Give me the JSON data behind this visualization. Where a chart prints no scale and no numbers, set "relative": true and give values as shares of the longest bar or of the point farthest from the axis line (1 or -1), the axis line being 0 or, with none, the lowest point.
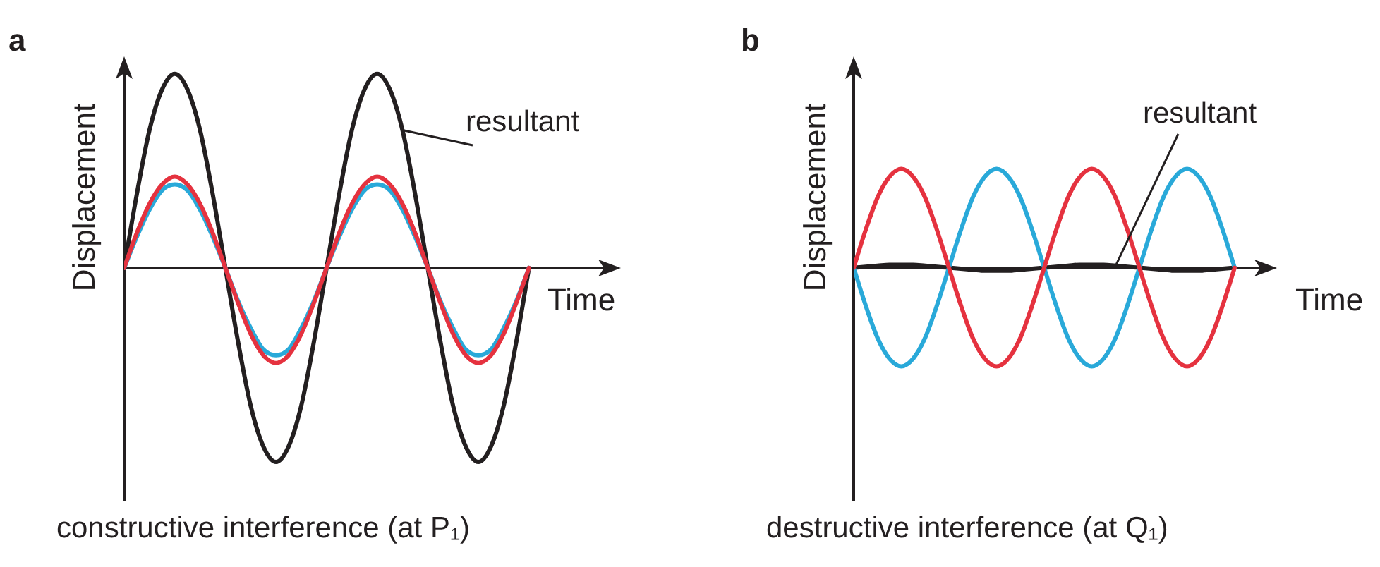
{
  "chart_data": [
    {
      "type": "line",
      "title": "a",
      "xlabel": "Time",
      "ylabel": "Displacement",
      "relative": true,
      "marker": "none",
      "annotations": [
        "constructive interference (at P₁)"
      ],
      "categories": [
        null,
        null,
        null,
        null,
        null,
        null,
        null,
        null,
        null,
        null,
        null,
        null,
        null,
        null,
        null,
        null,
        null,
        null,
        null,
        null,
        null,
        null,
        null,
        null,
        null,
        null,
        null,
        null,
        null,
        null,
        null,
        null,
        null
      ],
      "series": [
        {
          "color": "#e5323f",
          "values": [
            0,
            0.18,
            0.33,
            0.43,
            0.47,
            0.43,
            0.33,
            0.18,
            0,
            -0.18,
            -0.34,
            -0.45,
            -0.49,
            -0.45,
            -0.34,
            -0.18,
            0,
            0.18,
            0.33,
            0.43,
            0.47,
            0.43,
            0.33,
            0.18,
            0,
            -0.18,
            -0.34,
            -0.45,
            -0.49,
            -0.45,
            -0.34,
            -0.18,
            0
          ]
        },
        {
          "color": "#29a9d9",
          "values": [
            0,
            0.16,
            0.3,
            0.4,
            0.43,
            0.4,
            0.3,
            0.16,
            0,
            -0.17,
            -0.31,
            -0.42,
            -0.45,
            -0.42,
            -0.31,
            -0.17,
            0,
            0.16,
            0.3,
            0.4,
            0.43,
            0.4,
            0.3,
            0.16,
            0,
            -0.17,
            -0.31,
            -0.42,
            -0.45,
            -0.42,
            -0.31,
            -0.17,
            0
          ]
        },
        {
          "name": "resultant",
          "color": "#231f20",
          "values": [
            0,
            0.38,
            0.71,
            0.92,
            1,
            0.92,
            0.71,
            0.38,
            0,
            -0.38,
            -0.71,
            -0.92,
            -1,
            -0.92,
            -0.71,
            -0.38,
            0,
            0.38,
            0.71,
            0.92,
            1,
            0.92,
            0.71,
            0.38,
            0,
            -0.38,
            -0.71,
            -0.92,
            -1,
            -0.92,
            -0.71,
            -0.38,
            0
          ]
        }
      ]
    },
    {
      "type": "line",
      "title": "b",
      "xlabel": "Time",
      "ylabel": "Displacement",
      "relative": true,
      "marker": "none",
      "annotations": [
        "destructive interference (at Q₁)"
      ],
      "categories": [
        null,
        null,
        null,
        null,
        null,
        null,
        null,
        null,
        null,
        null,
        null,
        null,
        null,
        null,
        null,
        null,
        null,
        null,
        null,
        null,
        null,
        null,
        null,
        null,
        null,
        null,
        null,
        null,
        null,
        null,
        null,
        null,
        null
      ],
      "series": [
        {
          "color": "#e5323f",
          "values": [
            0,
            0.38,
            0.71,
            0.92,
            1,
            0.92,
            0.71,
            0.38,
            0,
            -0.38,
            -0.71,
            -0.92,
            -1,
            -0.92,
            -0.71,
            -0.38,
            0,
            0.38,
            0.71,
            0.92,
            1,
            0.92,
            0.71,
            0.38,
            0,
            -0.38,
            -0.71,
            -0.92,
            -1,
            -0.92,
            -0.71,
            -0.38,
            0
          ]
        },
        {
          "color": "#29a9d9",
          "values": [
            0,
            -0.38,
            -0.71,
            -0.92,
            -1,
            -0.92,
            -0.71,
            -0.38,
            0,
            0.38,
            0.71,
            0.92,
            1,
            0.92,
            0.71,
            0.38,
            0,
            -0.38,
            -0.71,
            -0.92,
            -1,
            -0.92,
            -0.71,
            -0.38,
            0,
            0.38,
            0.71,
            0.92,
            1,
            0.92,
            0.71,
            0.38,
            0
          ]
        },
        {
          "name": "resultant",
          "color": "#231f20",
          "values": [
            0,
            0.01,
            0.02,
            0.03,
            0.03,
            0.03,
            0.02,
            0.01,
            0,
            -0.01,
            -0.02,
            -0.03,
            -0.03,
            -0.03,
            -0.02,
            -0.01,
            0,
            0.01,
            0.02,
            0.03,
            0.03,
            0.03,
            0.02,
            0.01,
            0,
            -0.01,
            -0.02,
            -0.03,
            -0.03,
            -0.03,
            -0.02,
            -0.01,
            0
          ]
        }
      ]
    }
  ]
}
